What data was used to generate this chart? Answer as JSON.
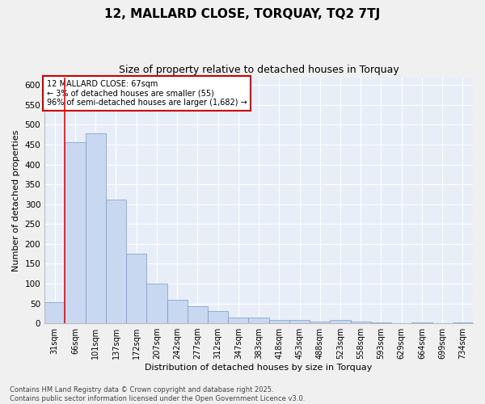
{
  "title": "12, MALLARD CLOSE, TORQUAY, TQ2 7TJ",
  "subtitle": "Size of property relative to detached houses in Torquay",
  "xlabel": "Distribution of detached houses by size in Torquay",
  "ylabel": "Number of detached properties",
  "bar_color": "#c8d8f0",
  "bar_edge_color": "#7799cc",
  "background_color": "#e8eef8",
  "fig_background": "#f0f0f0",
  "grid_color": "#ffffff",
  "categories": [
    "31sqm",
    "66sqm",
    "101sqm",
    "137sqm",
    "172sqm",
    "207sqm",
    "242sqm",
    "277sqm",
    "312sqm",
    "347sqm",
    "383sqm",
    "418sqm",
    "453sqm",
    "488sqm",
    "523sqm",
    "558sqm",
    "593sqm",
    "629sqm",
    "664sqm",
    "699sqm",
    "734sqm"
  ],
  "values": [
    54,
    457,
    478,
    312,
    175,
    100,
    59,
    43,
    30,
    15,
    15,
    9,
    9,
    5,
    9,
    5,
    3,
    0,
    3,
    1,
    2
  ],
  "red_line_x": 1,
  "annotation_text": "12 MALLARD CLOSE: 67sqm\n← 3% of detached houses are smaller (55)\n96% of semi-detached houses are larger (1,682) →",
  "annotation_box_color": "#ffffff",
  "annotation_box_edge": "#cc0000",
  "ylim": [
    0,
    620
  ],
  "yticks": [
    0,
    50,
    100,
    150,
    200,
    250,
    300,
    350,
    400,
    450,
    500,
    550,
    600
  ],
  "footer": "Contains HM Land Registry data © Crown copyright and database right 2025.\nContains public sector information licensed under the Open Government Licence v3.0.",
  "title_fontsize": 11,
  "subtitle_fontsize": 9,
  "tick_fontsize": 7,
  "label_fontsize": 8,
  "annot_fontsize": 7,
  "footer_fontsize": 6
}
